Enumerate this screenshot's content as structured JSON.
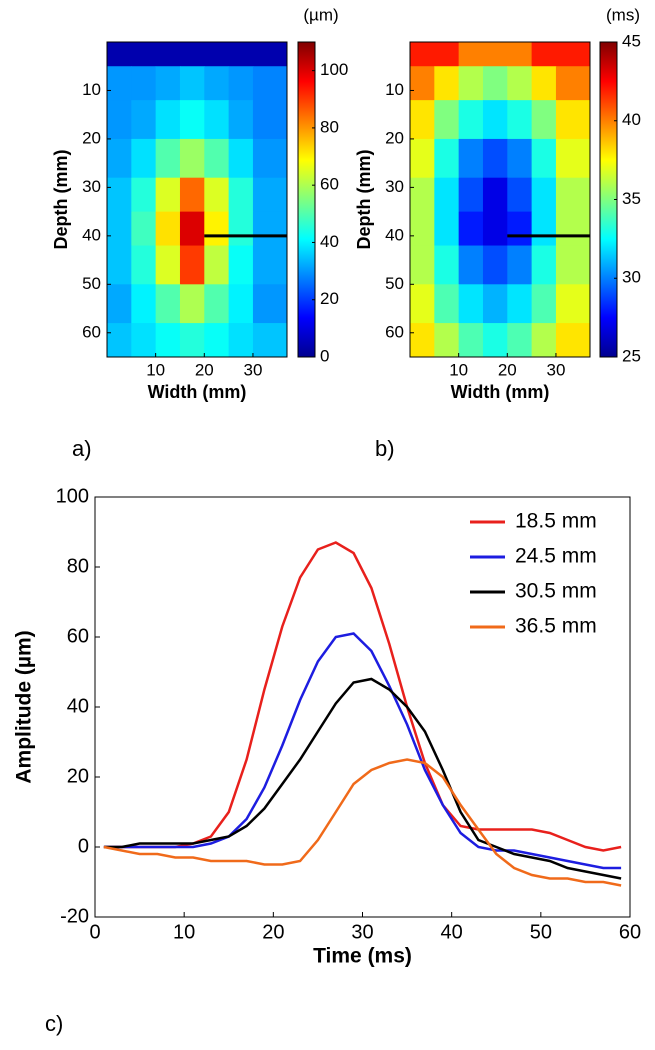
{
  "chart_data": [
    {
      "type": "heatmap",
      "panel_label": "a)",
      "xlabel": "Width (mm)",
      "ylabel": "Depth (mm)",
      "colorbar_label": "(µm)",
      "xbins": [
        0,
        5,
        10,
        15,
        20,
        25,
        30,
        37
      ],
      "ybins": [
        0,
        5,
        12,
        20,
        28,
        35,
        42,
        50,
        58,
        65
      ],
      "xlim": [
        0,
        37
      ],
      "ylim": [
        0,
        65
      ],
      "y_reversed": true,
      "xticks": [
        10,
        20,
        30
      ],
      "yticks": [
        10,
        20,
        30,
        40,
        50,
        60
      ],
      "zlim": [
        0,
        110
      ],
      "zticks": [
        0,
        20,
        40,
        60,
        80,
        100
      ],
      "colormap": "jet",
      "z": [
        [
          5,
          5,
          5,
          5,
          5,
          5,
          5
        ],
        [
          30,
          30,
          32,
          35,
          32,
          30,
          28
        ],
        [
          30,
          32,
          38,
          42,
          38,
          32,
          28
        ],
        [
          32,
          38,
          50,
          58,
          50,
          38,
          30
        ],
        [
          35,
          45,
          65,
          85,
          65,
          45,
          32
        ],
        [
          35,
          48,
          72,
          100,
          70,
          45,
          32
        ],
        [
          35,
          45,
          65,
          90,
          62,
          42,
          32
        ],
        [
          32,
          40,
          50,
          60,
          50,
          40,
          30
        ],
        [
          35,
          38,
          42,
          45,
          42,
          38,
          35
        ]
      ],
      "profile_line": {
        "x": [
          20,
          37
        ],
        "y": 40,
        "color": "#000000"
      }
    },
    {
      "type": "heatmap",
      "panel_label": "b)",
      "xlabel": "Width (mm)",
      "ylabel": "Depth (mm)",
      "colorbar_label": "(ms)",
      "xbins": [
        0,
        5,
        10,
        15,
        20,
        25,
        30,
        37
      ],
      "ybins": [
        0,
        5,
        12,
        20,
        28,
        35,
        42,
        50,
        58,
        65
      ],
      "xlim": [
        0,
        37
      ],
      "ylim": [
        0,
        65
      ],
      "y_reversed": true,
      "xticks": [
        10,
        20,
        30
      ],
      "yticks": [
        10,
        20,
        30,
        40,
        50,
        60
      ],
      "zlim": [
        25,
        45
      ],
      "zticks": [
        25,
        30,
        35,
        40,
        45
      ],
      "colormap": "jet",
      "z": [
        [
          42,
          42,
          40,
          40,
          40,
          42,
          42
        ],
        [
          40,
          38,
          36,
          35,
          36,
          38,
          40
        ],
        [
          38,
          35,
          33,
          32,
          33,
          35,
          38
        ],
        [
          37,
          33,
          30,
          29,
          30,
          33,
          37
        ],
        [
          36,
          32,
          29,
          27,
          29,
          32,
          36
        ],
        [
          36,
          32,
          28,
          27,
          28,
          32,
          36
        ],
        [
          36,
          33,
          30,
          29,
          30,
          33,
          36
        ],
        [
          37,
          34,
          32,
          31,
          32,
          34,
          37
        ],
        [
          38,
          36,
          34,
          33,
          34,
          36,
          38
        ]
      ],
      "profile_line": {
        "x": [
          20,
          37
        ],
        "y": 40,
        "color": "#000000"
      }
    },
    {
      "type": "line",
      "panel_label": "c)",
      "xlabel": "Time (ms)",
      "ylabel": "Amplitude (µm)",
      "x": [
        1,
        3,
        5,
        7,
        9,
        11,
        13,
        15,
        17,
        19,
        21,
        23,
        25,
        27,
        29,
        31,
        33,
        35,
        37,
        39,
        41,
        43,
        45,
        47,
        49,
        51,
        53,
        55,
        57,
        59
      ],
      "xlim": [
        0,
        60
      ],
      "ylim": [
        -20,
        100
      ],
      "xticks": [
        0,
        10,
        20,
        30,
        40,
        50,
        60
      ],
      "yticks": [
        -20,
        0,
        20,
        40,
        60,
        80,
        100
      ],
      "legend": "northeast",
      "series": [
        {
          "name": "18.5 mm",
          "color": "#e8201c",
          "values": [
            0,
            0,
            0,
            0,
            0,
            1,
            3,
            10,
            25,
            45,
            63,
            77,
            85,
            87,
            84,
            74,
            58,
            40,
            24,
            12,
            6,
            5,
            5,
            5,
            5,
            4,
            2,
            0,
            -1,
            0
          ]
        },
        {
          "name": "24.5 mm",
          "color": "#1d1de0",
          "values": [
            0,
            0,
            0,
            0,
            0,
            0,
            1,
            3,
            8,
            17,
            29,
            42,
            53,
            60,
            61,
            56,
            46,
            35,
            22,
            12,
            4,
            0,
            -1,
            -1,
            -2,
            -3,
            -4,
            -5,
            -6,
            -6
          ]
        },
        {
          "name": "30.5 mm",
          "color": "#000000",
          "values": [
            0,
            0,
            1,
            1,
            1,
            1,
            2,
            3,
            6,
            11,
            18,
            25,
            33,
            41,
            47,
            48,
            45,
            40,
            33,
            22,
            10,
            2,
            0,
            -2,
            -3,
            -4,
            -6,
            -7,
            -8,
            -9
          ]
        },
        {
          "name": "36.5 mm",
          "color": "#f06a1a",
          "values": [
            0,
            -1,
            -2,
            -2,
            -3,
            -3,
            -4,
            -4,
            -4,
            -5,
            -5,
            -4,
            2,
            10,
            18,
            22,
            24,
            25,
            24,
            20,
            12,
            5,
            -2,
            -6,
            -8,
            -9,
            -9,
            -10,
            -10,
            -11
          ]
        }
      ]
    }
  ]
}
